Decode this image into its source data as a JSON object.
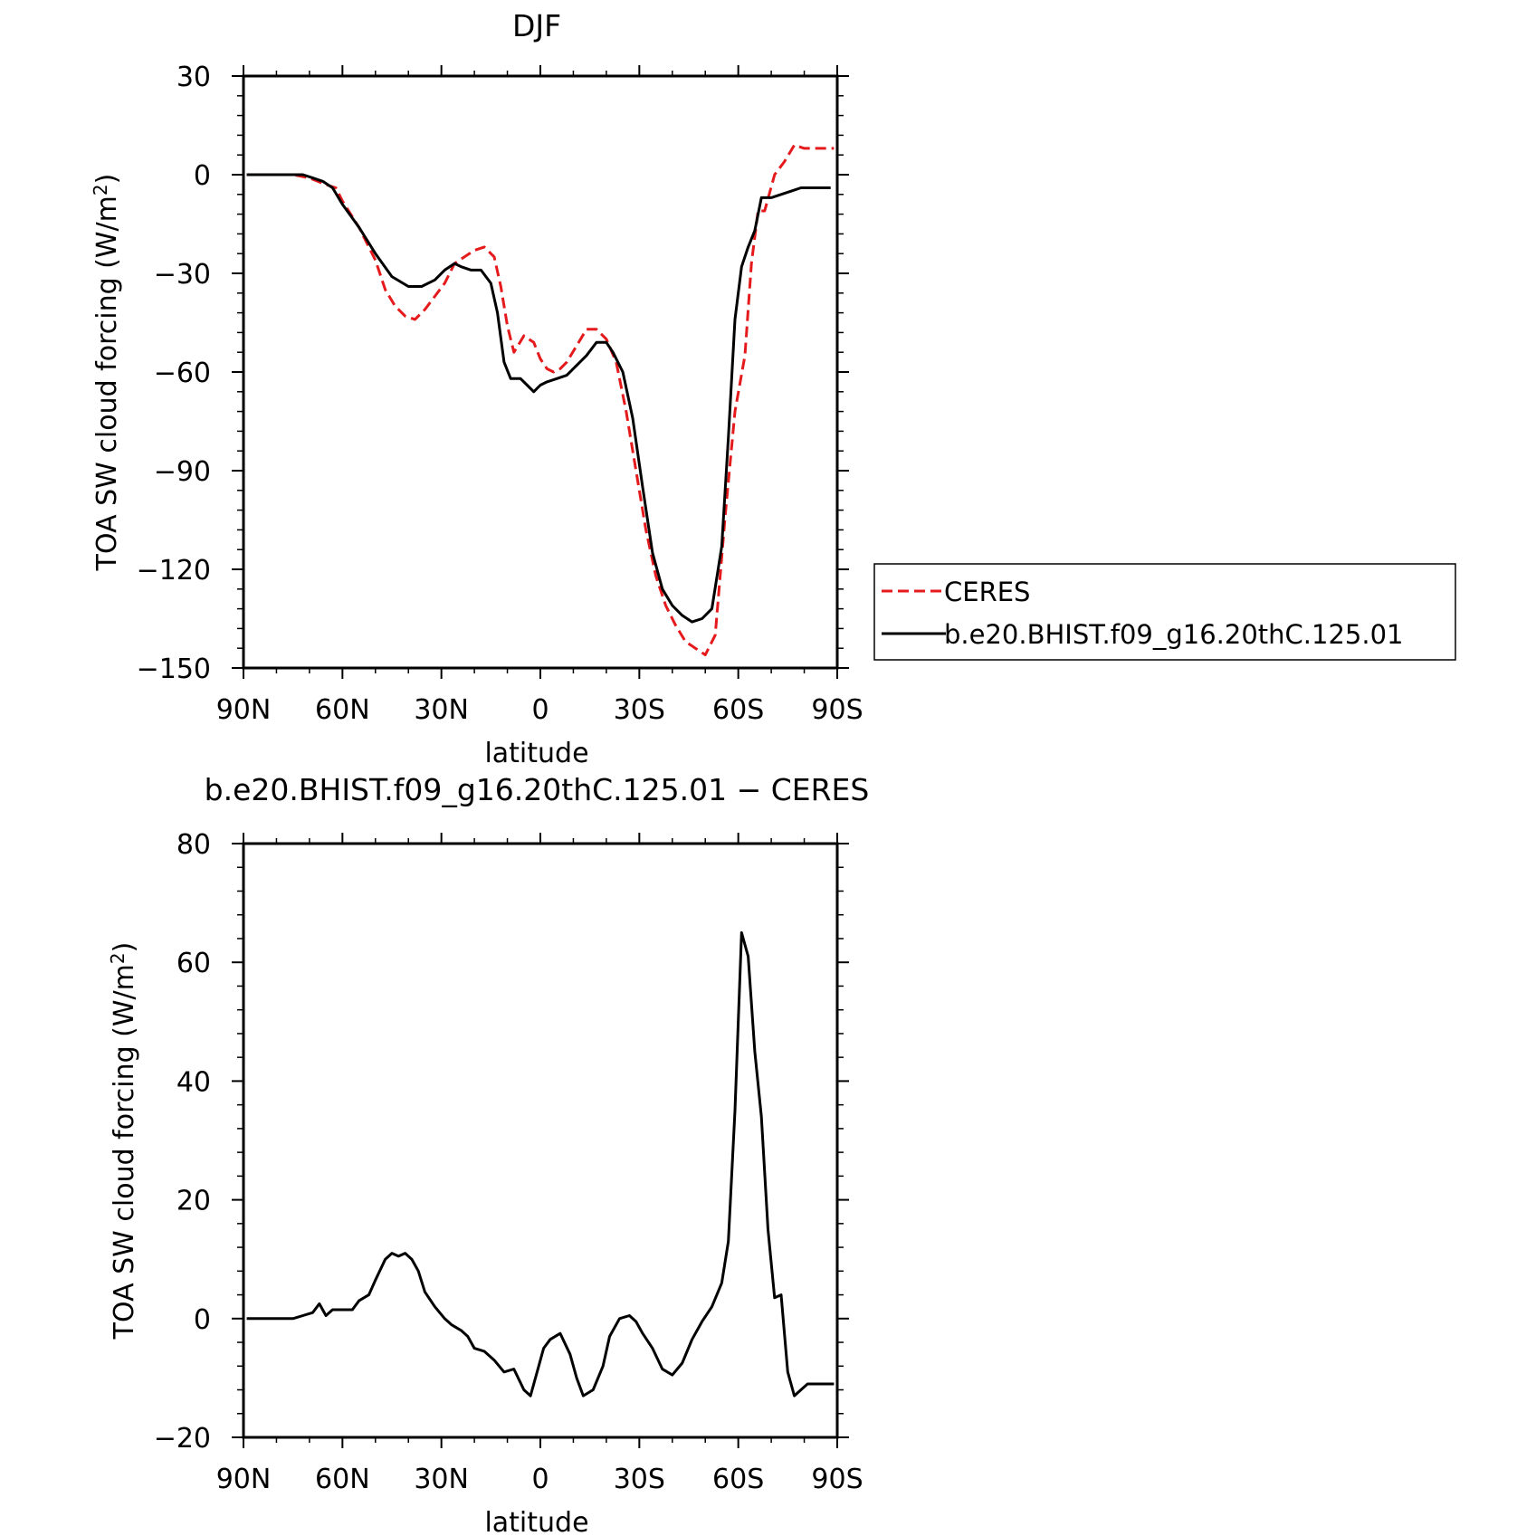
{
  "chart_data": [
    {
      "type": "line",
      "title": "DJF",
      "xlabel": "latitude",
      "ylabel": "TOA SW cloud forcing (W/m²)",
      "ylabel_main": "TOA SW cloud forcing (W/m",
      "ylabel_sup": "2",
      "ylabel_close": ")",
      "xlim": [
        90,
        -90
      ],
      "ylim": [
        -150,
        30
      ],
      "xticks": [
        90,
        60,
        30,
        0,
        -30,
        -60,
        -90
      ],
      "xtick_labels": [
        "90N",
        "60N",
        "30N",
        "0",
        "30S",
        "60S",
        "90S"
      ],
      "yticks": [
        30,
        0,
        -30,
        -60,
        -90,
        -120,
        -150
      ],
      "ytick_labels": [
        "30",
        "0",
        "−30",
        "−60",
        "−90",
        "−120",
        "−150"
      ],
      "legend": "right",
      "series": [
        {
          "name": "CERES",
          "color": "#e41a1c",
          "dash": "dashed",
          "x": [
            89,
            80,
            75,
            70,
            65,
            62,
            60,
            55,
            50,
            47,
            44,
            41,
            38,
            35,
            32,
            29,
            26,
            23,
            20,
            17,
            14,
            12,
            10,
            8,
            5,
            2,
            0,
            -2,
            -4,
            -6,
            -8,
            -11,
            -14,
            -17,
            -20,
            -23,
            -26,
            -29,
            -32,
            -35,
            -38,
            -41,
            -44,
            -47,
            -50,
            -53,
            -56,
            -59,
            -62,
            -64,
            -66,
            -68,
            -71,
            -74,
            -77,
            -80,
            -83,
            -85,
            -87,
            -89
          ],
          "y": [
            0,
            0,
            0,
            -1,
            -3,
            -4,
            -8,
            -16,
            -26,
            -35,
            -40,
            -43,
            -44,
            -41,
            -37,
            -33,
            -27,
            -25,
            -23,
            -22,
            -25,
            -34,
            -46,
            -54,
            -49,
            -51,
            -56,
            -59,
            -60,
            -59,
            -57,
            -52,
            -47,
            -47,
            -50,
            -57,
            -72,
            -90,
            -108,
            -122,
            -131,
            -137,
            -142,
            -144,
            -146,
            -140,
            -104,
            -72,
            -55,
            -27,
            -11,
            -11,
            0,
            4,
            9,
            8,
            8,
            8,
            8,
            8
          ]
        },
        {
          "name": "b.e20.BHIST.f09_g16.20thC.125.01",
          "color": "#000000",
          "dash": "solid",
          "x": [
            89,
            80,
            75,
            72,
            69,
            66,
            63,
            60,
            55,
            50,
            45,
            40,
            36,
            32,
            29,
            26,
            24,
            21,
            18,
            15,
            13,
            11,
            9,
            6,
            4,
            2,
            0,
            -2,
            -5,
            -8,
            -11,
            -14,
            -17,
            -20,
            -22,
            -25,
            -28,
            -31,
            -34,
            -37,
            -40,
            -43,
            -46,
            -49,
            -52,
            -55,
            -57,
            -59,
            -61,
            -63,
            -65,
            -67,
            -70,
            -73,
            -76,
            -79,
            -82,
            -85,
            -88
          ],
          "y": [
            0,
            0,
            0,
            0,
            -1,
            -2,
            -4,
            -9,
            -16,
            -24,
            -31,
            -34,
            -34,
            -32,
            -29,
            -27,
            -28,
            -29,
            -29,
            -33,
            -42,
            -57,
            -62,
            -62,
            -64,
            -66,
            -64,
            -63,
            -62,
            -61,
            -58,
            -55,
            -51,
            -51,
            -54,
            -60,
            -74,
            -95,
            -115,
            -126,
            -131,
            -134,
            -136,
            -135,
            -132,
            -113,
            -80,
            -44,
            -28,
            -22,
            -17,
            -7,
            -7,
            -6,
            -5,
            -4,
            -4,
            -4,
            -4
          ]
        }
      ]
    },
    {
      "type": "line",
      "title": "b.e20.BHIST.f09_g16.20thC.125.01 − CERES",
      "xlabel": "latitude",
      "ylabel": "TOA SW cloud forcing (W/m²)",
      "ylabel_main": "TOA SW cloud forcing (W/m",
      "ylabel_sup": "2",
      "ylabel_close": ")",
      "xlim": [
        90,
        -90
      ],
      "ylim": [
        -20,
        80
      ],
      "xticks": [
        90,
        60,
        30,
        0,
        -30,
        -60,
        -90
      ],
      "xtick_labels": [
        "90N",
        "60N",
        "30N",
        "0",
        "30S",
        "60S",
        "90S"
      ],
      "yticks": [
        80,
        60,
        40,
        20,
        0,
        -20
      ],
      "ytick_labels": [
        "80",
        "60",
        "40",
        "20",
        "0",
        "−20"
      ],
      "series": [
        {
          "color": "#000000",
          "dash": "solid",
          "x": [
            89,
            80,
            75,
            72,
            69,
            67,
            65,
            63,
            60,
            57,
            55,
            52,
            50,
            47,
            45,
            43,
            41,
            39,
            37,
            35,
            32,
            29,
            27,
            24,
            22,
            20,
            17,
            14,
            11,
            8,
            5,
            3,
            1,
            -1,
            -3,
            -6,
            -9,
            -11,
            -13,
            -16,
            -19,
            -21,
            -24,
            -27,
            -29,
            -31,
            -34,
            -37,
            -40,
            -43,
            -46,
            -49,
            -52,
            -55,
            -57,
            -59,
            -61,
            -63,
            -65,
            -67,
            -69,
            -71,
            -73,
            -75,
            -77,
            -79,
            -81,
            -83,
            -85,
            -87,
            -89
          ],
          "y": [
            0,
            0,
            0,
            0.5,
            1,
            2.5,
            0.5,
            1.5,
            1.5,
            1.5,
            3,
            4,
            6.5,
            10,
            11,
            10.5,
            11,
            10,
            8,
            4.5,
            2,
            0,
            -1,
            -2,
            -3,
            -5,
            -5.5,
            -7,
            -9,
            -8.5,
            -12,
            -13,
            -9,
            -5,
            -3.5,
            -2.5,
            -6,
            -10,
            -13,
            -12,
            -8,
            -3,
            0,
            0.5,
            -0.5,
            -2.5,
            -5,
            -8.5,
            -9.5,
            -7.5,
            -3.5,
            -0.5,
            2,
            6,
            13,
            35,
            65,
            61,
            45,
            34,
            15,
            3.5,
            4,
            -9,
            -13,
            -12,
            -11,
            -11,
            -11,
            -11,
            -11
          ]
        }
      ]
    }
  ]
}
